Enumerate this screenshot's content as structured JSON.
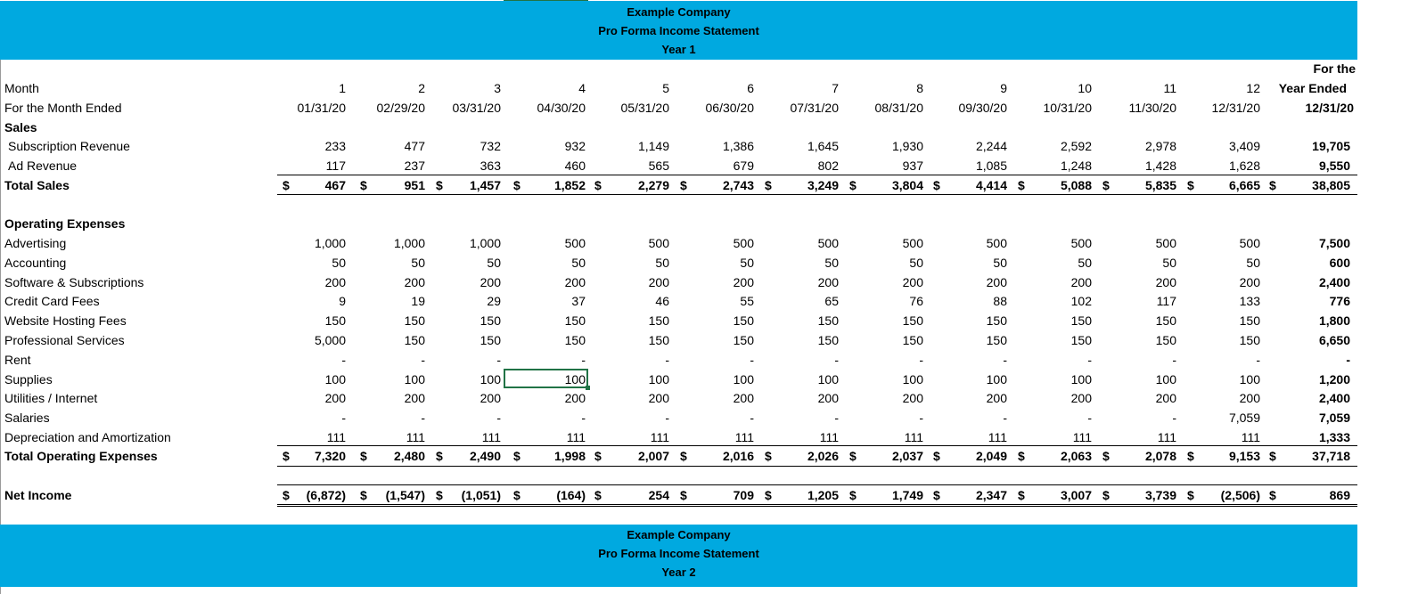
{
  "header_year1": {
    "company": "Example Company",
    "title": "Pro Forma Income Statement",
    "year": "Year 1"
  },
  "header_year2": {
    "company": "Example Company",
    "title": "Pro Forma Income Statement",
    "year": "Year 2"
  },
  "year_col_header": {
    "line1": "For the",
    "line2": "Year Ended",
    "date": "12/31/20"
  },
  "month_label": "Month",
  "months": [
    "1",
    "2",
    "3",
    "4",
    "5",
    "6",
    "7",
    "8",
    "9",
    "10",
    "11",
    "12"
  ],
  "month_ended_label": "For the Month Ended",
  "month_dates": [
    "01/31/20",
    "02/29/20",
    "03/31/20",
    "04/30/20",
    "05/31/20",
    "06/30/20",
    "07/31/20",
    "08/31/20",
    "09/30/20",
    "10/31/20",
    "11/30/20",
    "12/31/20"
  ],
  "currency_symbol": "$",
  "sales": {
    "heading": "Sales",
    "rows": [
      {
        "label": "Subscription Revenue",
        "values": [
          "233",
          "477",
          "732",
          "932",
          "1,149",
          "1,386",
          "1,645",
          "1,930",
          "2,244",
          "2,592",
          "2,978",
          "3,409"
        ],
        "total": "19,705"
      },
      {
        "label": "Ad Revenue",
        "values": [
          "117",
          "237",
          "363",
          "460",
          "565",
          "679",
          "802",
          "937",
          "1,085",
          "1,248",
          "1,428",
          "1,628"
        ],
        "total": "9,550"
      }
    ],
    "total": {
      "label": "Total Sales",
      "values": [
        "467",
        "951",
        "1,457",
        "1,852",
        "2,279",
        "2,743",
        "3,249",
        "3,804",
        "4,414",
        "5,088",
        "5,835",
        "6,665"
      ],
      "total": "38,805"
    }
  },
  "expenses": {
    "heading": "Operating Expenses",
    "rows": [
      {
        "label": "Advertising",
        "values": [
          "1,000",
          "1,000",
          "1,000",
          "500",
          "500",
          "500",
          "500",
          "500",
          "500",
          "500",
          "500",
          "500"
        ],
        "total": "7,500"
      },
      {
        "label": "Accounting",
        "values": [
          "50",
          "50",
          "50",
          "50",
          "50",
          "50",
          "50",
          "50",
          "50",
          "50",
          "50",
          "50"
        ],
        "total": "600"
      },
      {
        "label": "Software & Subscriptions",
        "values": [
          "200",
          "200",
          "200",
          "200",
          "200",
          "200",
          "200",
          "200",
          "200",
          "200",
          "200",
          "200"
        ],
        "total": "2,400"
      },
      {
        "label": "Credit Card Fees",
        "values": [
          "9",
          "19",
          "29",
          "37",
          "46",
          "55",
          "65",
          "76",
          "88",
          "102",
          "117",
          "133"
        ],
        "total": "776"
      },
      {
        "label": "Website Hosting Fees",
        "values": [
          "150",
          "150",
          "150",
          "150",
          "150",
          "150",
          "150",
          "150",
          "150",
          "150",
          "150",
          "150"
        ],
        "total": "1,800"
      },
      {
        "label": "Professional Services",
        "values": [
          "5,000",
          "150",
          "150",
          "150",
          "150",
          "150",
          "150",
          "150",
          "150",
          "150",
          "150",
          "150"
        ],
        "total": "6,650"
      },
      {
        "label": "Rent",
        "values": [
          "-",
          "-",
          "-",
          "-",
          "-",
          "-",
          "-",
          "-",
          "-",
          "-",
          "-",
          "-"
        ],
        "total": "-"
      },
      {
        "label": "Supplies",
        "values": [
          "100",
          "100",
          "100",
          "100",
          "100",
          "100",
          "100",
          "100",
          "100",
          "100",
          "100",
          "100"
        ],
        "total": "1,200"
      },
      {
        "label": "Utilities / Internet",
        "values": [
          "200",
          "200",
          "200",
          "200",
          "200",
          "200",
          "200",
          "200",
          "200",
          "200",
          "200",
          "200"
        ],
        "total": "2,400"
      },
      {
        "label": "Salaries",
        "values": [
          "-",
          "-",
          "-",
          "-",
          "-",
          "-",
          "-",
          "-",
          "-",
          "-",
          "-",
          "7,059"
        ],
        "total": "7,059"
      },
      {
        "label": "Depreciation and Amortization",
        "values": [
          "111",
          "111",
          "111",
          "111",
          "111",
          "111",
          "111",
          "111",
          "111",
          "111",
          "111",
          "111"
        ],
        "total": "1,333"
      }
    ],
    "total": {
      "label": "Total Operating Expenses",
      "values": [
        "7,320",
        "2,480",
        "2,490",
        "1,998",
        "2,007",
        "2,016",
        "2,026",
        "2,037",
        "2,049",
        "2,063",
        "2,078",
        "9,153"
      ],
      "total": "37,718"
    }
  },
  "net_income": {
    "label": "Net Income",
    "values": [
      "(6,872)",
      "(1,547)",
      "(1,051)",
      "(164)",
      "254",
      "709",
      "1,205",
      "1,749",
      "2,347",
      "3,007",
      "3,739",
      "(2,506)"
    ],
    "total": "869"
  }
}
